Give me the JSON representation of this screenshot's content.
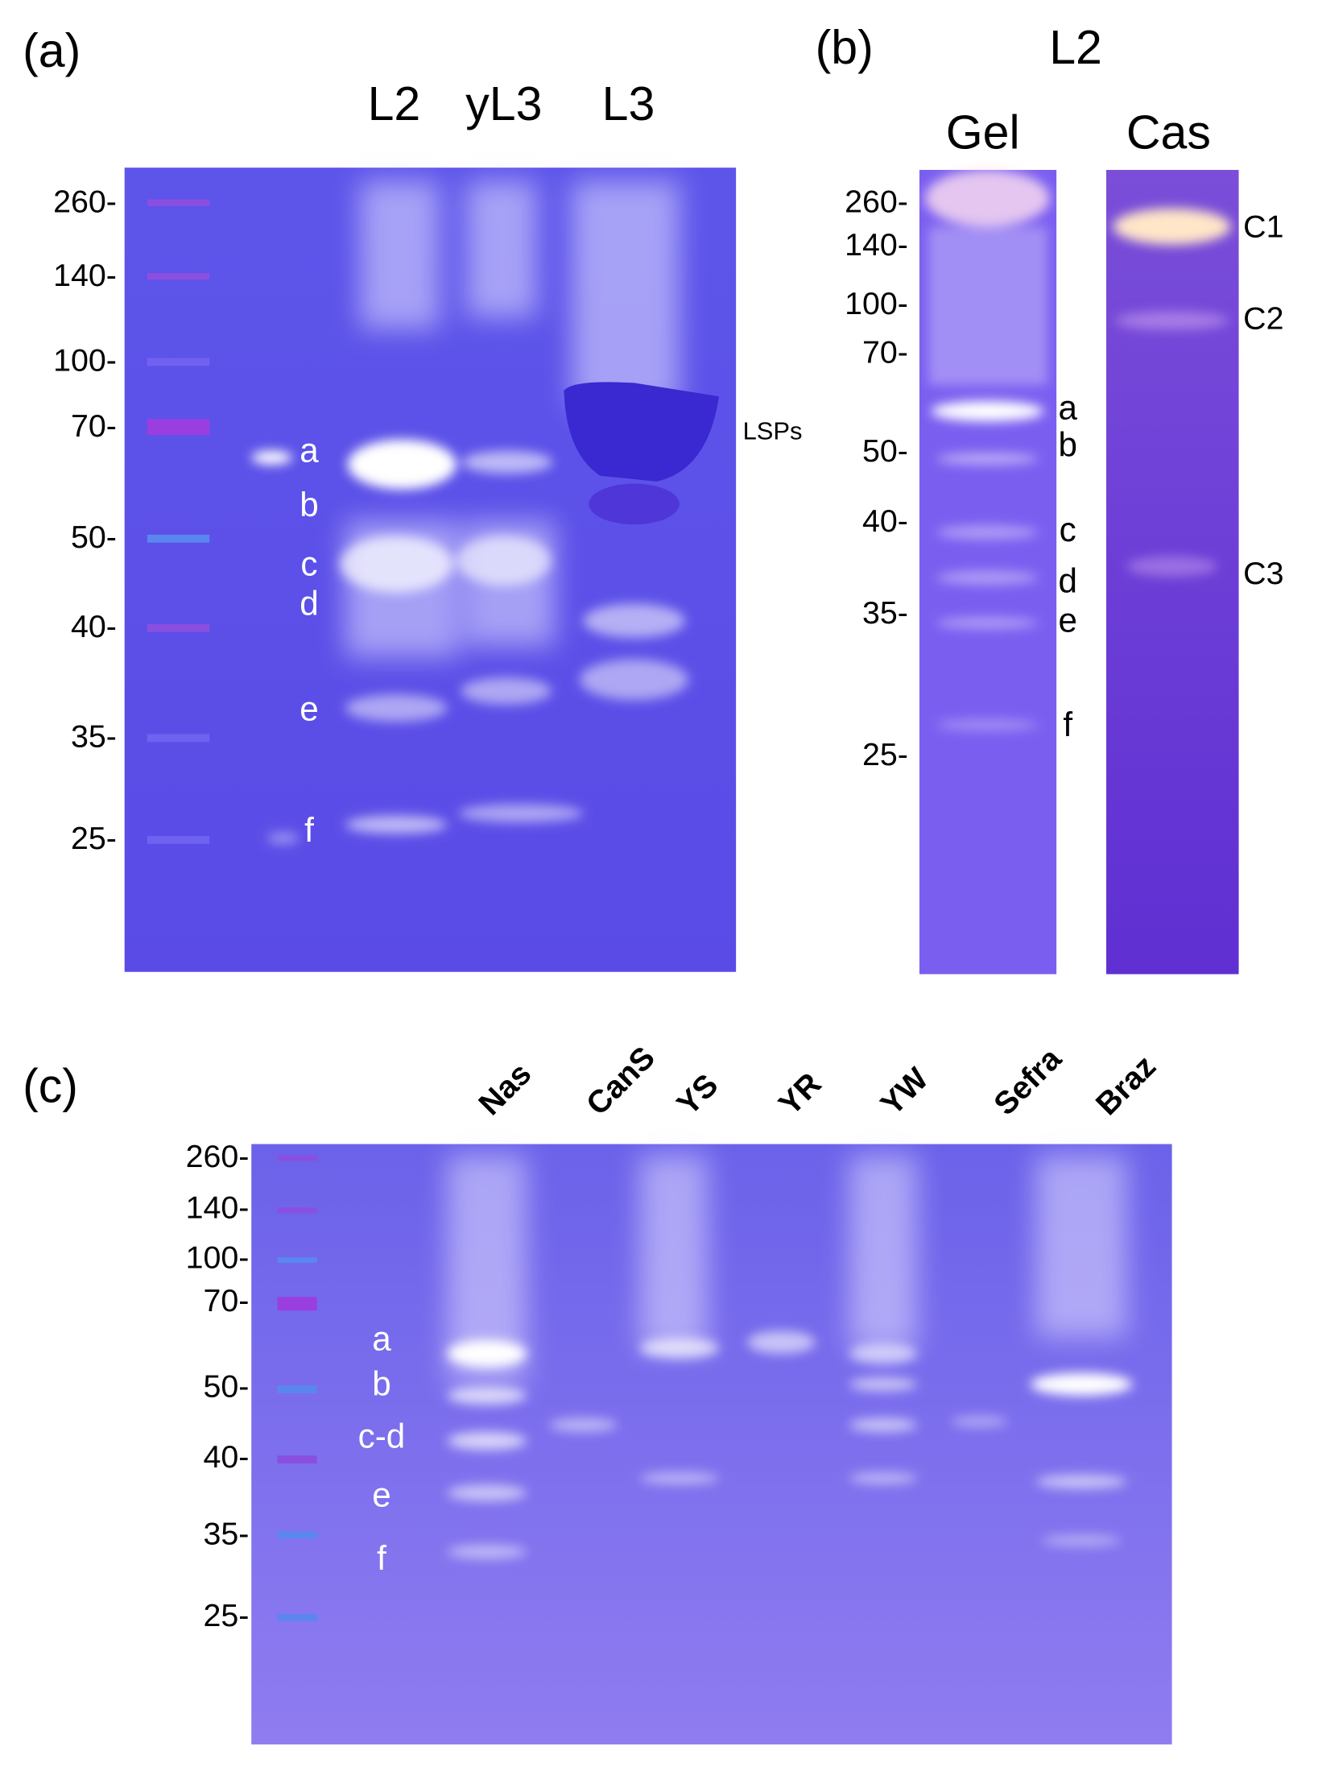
{
  "panels": [
    {
      "label": "(a)",
      "lanes": [
        "L2",
        "yL3",
        "L3"
      ],
      "markers": [
        "260-",
        "140-",
        "100-",
        "70-",
        "50-",
        "40-",
        "35-",
        "25-"
      ],
      "bands": [
        "a",
        "b",
        "c",
        "d",
        "e",
        "f"
      ],
      "annotation": "LSPs"
    },
    {
      "label": "(b)",
      "group": "L2",
      "lanes": [
        "Gel",
        "Cas"
      ],
      "markers": [
        "260-",
        "140-",
        "100-",
        "70-",
        "50-",
        "40-",
        "35-",
        "25-"
      ],
      "bands": [
        "a",
        "b",
        "c",
        "d",
        "e",
        "f"
      ],
      "cas_bands": [
        "C1",
        "C2",
        "C3"
      ]
    },
    {
      "label": "(c)",
      "lanes": [
        "Nas",
        "CanS",
        "YS",
        "YR",
        "YW",
        "Sefra",
        "Braz"
      ],
      "markers": [
        "260-",
        "140-",
        "100-",
        "70-",
        "50-",
        "40-",
        "35-",
        "25-"
      ],
      "bands": [
        "a",
        "b",
        "c-d",
        "e",
        "f"
      ]
    }
  ]
}
